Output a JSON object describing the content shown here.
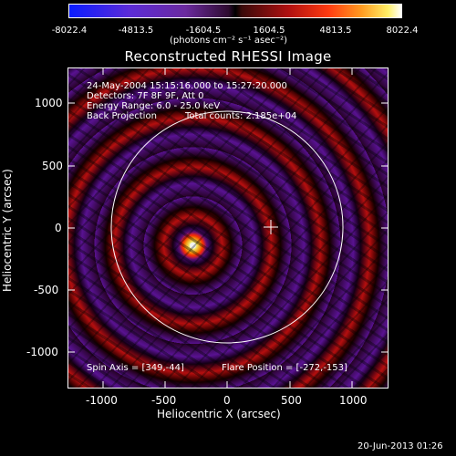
{
  "colorbar": {
    "ticks": [
      "-8022.4",
      "-4813.5",
      "-1604.5",
      "1604.5",
      "4813.5",
      "8022.4"
    ],
    "units": "(photons cm⁻² s⁻¹ asec⁻²)"
  },
  "title": "Reconstructed RHESSI Image",
  "info": {
    "line1": "24-May-2004 15:15:16.000 to 15:27:20.000",
    "line2": "Detectors: 7F 8F 9F, Att 0",
    "line3": "Energy Range: 6.0 - 25.0 keV",
    "line4_left": "Back Projection",
    "line4_right": "Total counts: 2.185e+04"
  },
  "footer_info": {
    "spin_axis": "Spin Axis = [349,-44]",
    "flare_position": "Flare Position = [-272,-153]"
  },
  "axes": {
    "x_ticks": [
      "-1000",
      "-500",
      "0",
      "500",
      "1000"
    ],
    "y_ticks": [
      "1000",
      "500",
      "0",
      "-500",
      "-1000"
    ],
    "x_label": "Heliocentric X (arcsec)",
    "y_label": "Heliocentric Y (arcsec)"
  },
  "timestamp": "20-Jun-2013 01:26"
}
